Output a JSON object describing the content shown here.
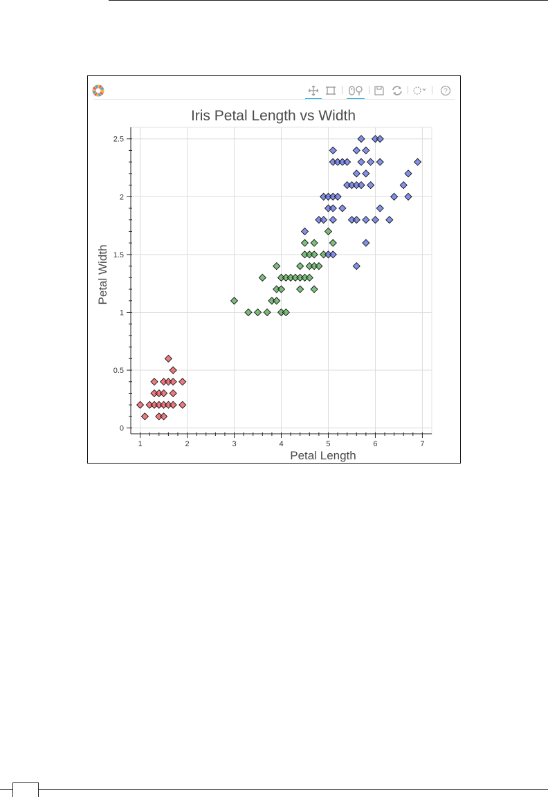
{
  "chart_data": {
    "type": "scatter",
    "title": "Iris Petal Length vs Width",
    "xlabel": "Petal Length",
    "ylabel": "Petal Width",
    "xlim": [
      0.8,
      7.2
    ],
    "ylim": [
      -0.05,
      2.6
    ],
    "xticks": [
      1,
      2,
      3,
      4,
      5,
      6,
      7
    ],
    "yticks": [
      0,
      0.5,
      1,
      1.5,
      2,
      2.5
    ],
    "xtick_labels": [
      "1",
      "2",
      "3",
      "4",
      "5",
      "6",
      "7"
    ],
    "ytick_labels": [
      "0",
      "0.5",
      "1",
      "1.5",
      "2",
      "2.5"
    ],
    "grid": true,
    "marker": "diamond",
    "series": [
      {
        "color": "#e8484f",
        "points": [
          [
            1.0,
            0.2
          ],
          [
            1.1,
            0.1
          ],
          [
            1.2,
            0.2
          ],
          [
            1.3,
            0.2
          ],
          [
            1.3,
            0.3
          ],
          [
            1.3,
            0.4
          ],
          [
            1.4,
            0.2
          ],
          [
            1.4,
            0.3
          ],
          [
            1.4,
            0.1
          ],
          [
            1.5,
            0.2
          ],
          [
            1.5,
            0.1
          ],
          [
            1.5,
            0.4
          ],
          [
            1.5,
            0.3
          ],
          [
            1.6,
            0.2
          ],
          [
            1.6,
            0.4
          ],
          [
            1.6,
            0.6
          ],
          [
            1.7,
            0.2
          ],
          [
            1.7,
            0.3
          ],
          [
            1.7,
            0.4
          ],
          [
            1.7,
            0.5
          ],
          [
            1.9,
            0.2
          ],
          [
            1.9,
            0.4
          ]
        ]
      },
      {
        "color": "#4ca64c",
        "points": [
          [
            3.0,
            1.1
          ],
          [
            3.3,
            1.0
          ],
          [
            3.5,
            1.0
          ],
          [
            3.6,
            1.3
          ],
          [
            3.7,
            1.0
          ],
          [
            3.8,
            1.1
          ],
          [
            3.9,
            1.1
          ],
          [
            3.9,
            1.2
          ],
          [
            3.9,
            1.4
          ],
          [
            4.0,
            1.0
          ],
          [
            4.0,
            1.2
          ],
          [
            4.0,
            1.3
          ],
          [
            4.1,
            1.0
          ],
          [
            4.1,
            1.3
          ],
          [
            4.2,
            1.3
          ],
          [
            4.3,
            1.3
          ],
          [
            4.4,
            1.2
          ],
          [
            4.4,
            1.3
          ],
          [
            4.4,
            1.4
          ],
          [
            4.5,
            1.3
          ],
          [
            4.5,
            1.5
          ],
          [
            4.5,
            1.6
          ],
          [
            4.6,
            1.3
          ],
          [
            4.6,
            1.4
          ],
          [
            4.6,
            1.5
          ],
          [
            4.7,
            1.2
          ],
          [
            4.7,
            1.4
          ],
          [
            4.7,
            1.5
          ],
          [
            4.7,
            1.6
          ],
          [
            4.8,
            1.4
          ],
          [
            4.9,
            1.5
          ],
          [
            5.0,
            1.7
          ],
          [
            5.1,
            1.6
          ]
        ]
      },
      {
        "color": "#5466e0",
        "points": [
          [
            4.5,
            1.7
          ],
          [
            4.8,
            1.8
          ],
          [
            4.9,
            1.8
          ],
          [
            4.9,
            2.0
          ],
          [
            5.0,
            1.5
          ],
          [
            5.0,
            1.9
          ],
          [
            5.0,
            2.0
          ],
          [
            5.1,
            1.5
          ],
          [
            5.1,
            1.8
          ],
          [
            5.1,
            1.9
          ],
          [
            5.1,
            2.0
          ],
          [
            5.1,
            2.3
          ],
          [
            5.1,
            2.4
          ],
          [
            5.2,
            2.0
          ],
          [
            5.2,
            2.3
          ],
          [
            5.3,
            1.9
          ],
          [
            5.3,
            2.3
          ],
          [
            5.4,
            2.1
          ],
          [
            5.4,
            2.3
          ],
          [
            5.5,
            1.8
          ],
          [
            5.5,
            2.1
          ],
          [
            5.6,
            1.4
          ],
          [
            5.6,
            1.8
          ],
          [
            5.6,
            2.1
          ],
          [
            5.6,
            2.2
          ],
          [
            5.6,
            2.4
          ],
          [
            5.7,
            2.1
          ],
          [
            5.7,
            2.3
          ],
          [
            5.7,
            2.5
          ],
          [
            5.8,
            1.8
          ],
          [
            5.8,
            2.2
          ],
          [
            5.8,
            2.4
          ],
          [
            5.9,
            2.1
          ],
          [
            5.9,
            2.3
          ],
          [
            6.0,
            1.8
          ],
          [
            6.0,
            2.5
          ],
          [
            6.1,
            1.9
          ],
          [
            6.1,
            2.3
          ],
          [
            6.1,
            2.5
          ],
          [
            6.3,
            1.8
          ],
          [
            6.4,
            2.0
          ],
          [
            6.6,
            2.1
          ],
          [
            6.7,
            2.0
          ],
          [
            6.7,
            2.2
          ],
          [
            6.9,
            2.3
          ],
          [
            5.8,
            1.6
          ]
        ]
      }
    ]
  },
  "colors": {
    "grid": "#dcdcdc",
    "axis": "#222222",
    "text": "#333333",
    "tool_active": "#26aae1",
    "tool_icon": "#a8a8a8"
  },
  "toolbar": {
    "icons": [
      "pan-icon",
      "box-zoom-icon",
      "wheel-zoom-icon",
      "tap-icon",
      "save-icon",
      "reset-icon",
      "hover-icon",
      "help-icon"
    ]
  }
}
